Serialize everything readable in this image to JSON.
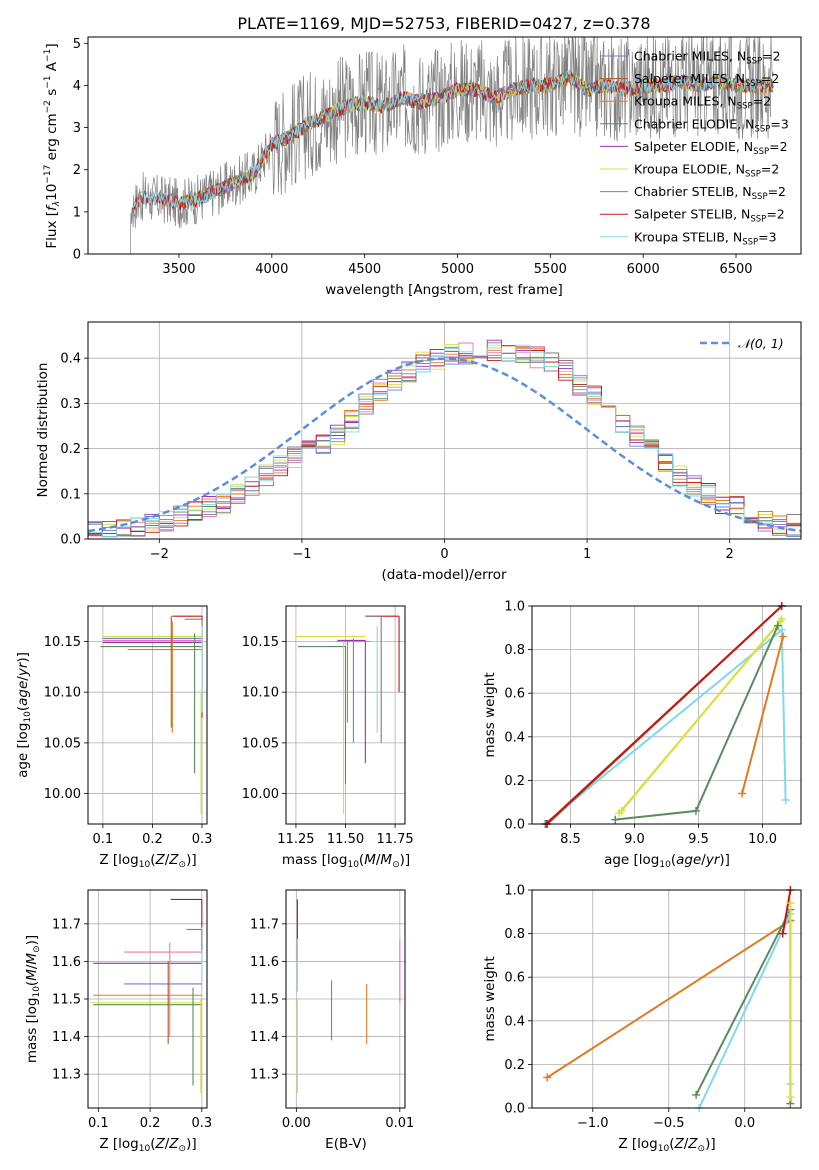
{
  "colors": {
    "chabrier_miles": "#6b7fd6",
    "salpeter_miles": "#a35a2a",
    "kroupa_miles": "#e07b20",
    "chabrier_elodie": "#5a8a5f",
    "salpeter_elodie": "#9b30b8",
    "kroupa_elodie": "#d8e040",
    "chabrier_stelib": "#7f7f7f",
    "salpeter_stelib": "#c01818",
    "kroupa_stelib": "#80d8e8",
    "pink": "#e878b8",
    "normal": "#5b8fd9"
  },
  "chart_data": [
    {
      "id": "spectrum",
      "type": "line",
      "title": "PLATE=1169, MJD=52753, FIBERID=0427, z=0.378",
      "xlabel": "wavelength [Angstrom, rest frame]",
      "ylabel": "Flux [fλ 10⁻¹⁷ erg cm⁻² s⁻¹ A⁻¹]",
      "xlim": [
        3010,
        6850
      ],
      "ylim": [
        0,
        5.15
      ],
      "xticks": [
        "3500",
        "4000",
        "4500",
        "5000",
        "5500",
        "6000",
        "6500"
      ],
      "yticks": [
        "0",
        "1",
        "2",
        "3",
        "4",
        "5"
      ],
      "grid": false,
      "legend_position": "top-right",
      "legend": [
        "Chabrier MILES, N_SSP=2",
        "Salpeter MILES, N_SSP=2",
        "Kroupa MILES, N_SSP=2",
        "Chabrier ELODIE, N_SSP=3",
        "Salpeter ELODIE, N_SSP=2",
        "Kroupa ELODIE, N_SSP=2",
        "Chabrier STELIB, N_SSP=2",
        "Salpeter STELIB, N_SSP=2",
        "Kroupa STELIB, N_SSP=3"
      ],
      "continuum": {
        "x": [
          3250,
          3300,
          3400,
          3500,
          3600,
          3700,
          3800,
          3900,
          4000,
          4100,
          4200,
          4300,
          4400,
          4500,
          4600,
          4700,
          4800,
          4900,
          5000,
          5100,
          5200,
          5300,
          5400,
          5500,
          5600,
          5700,
          5800,
          5900,
          6000,
          6100,
          6200,
          6300,
          6400,
          6500,
          6600,
          6700
        ],
        "y": [
          1.1,
          1.35,
          1.3,
          1.2,
          1.3,
          1.5,
          1.7,
          1.9,
          2.6,
          2.8,
          3.1,
          3.3,
          3.5,
          3.6,
          3.5,
          3.7,
          3.6,
          3.7,
          3.9,
          3.9,
          3.7,
          3.9,
          4.0,
          4.0,
          4.2,
          3.9,
          4.0,
          3.9,
          4.0,
          4.0,
          4.1,
          4.0,
          4.1,
          4.0,
          4.0,
          4.0
        ]
      }
    },
    {
      "id": "residuals",
      "type": "line",
      "xlabel": "(data-model)/error",
      "ylabel": "Normed distribution",
      "xlim": [
        -2.5,
        2.5
      ],
      "ylim": [
        0,
        0.48
      ],
      "xticks": [
        "−2",
        "−1",
        "0",
        "1",
        "2"
      ],
      "yticks": [
        "0.0",
        "0.1",
        "0.2",
        "0.3",
        "0.4"
      ],
      "grid": true,
      "legend_position": "top-right",
      "legend": [
        "𝒩(0, 1)"
      ],
      "normal": {
        "mean": 0,
        "sigma": 1
      },
      "hist_bins": {
        "start": -2.5,
        "width": 0.1
      },
      "hist_base": [
        0.02,
        0.02,
        0.02,
        0.03,
        0.03,
        0.04,
        0.05,
        0.06,
        0.07,
        0.08,
        0.1,
        0.12,
        0.14,
        0.16,
        0.18,
        0.2,
        0.21,
        0.23,
        0.26,
        0.3,
        0.33,
        0.35,
        0.37,
        0.39,
        0.4,
        0.41,
        0.41,
        0.42,
        0.42,
        0.41,
        0.41,
        0.4,
        0.39,
        0.37,
        0.34,
        0.32,
        0.29,
        0.26,
        0.23,
        0.2,
        0.17,
        0.14,
        0.12,
        0.1,
        0.08,
        0.07,
        0.05,
        0.04,
        0.03,
        0.03
      ]
    },
    {
      "id": "age-vs-z",
      "type": "scatter",
      "xlabel": "Z [log₁₀(Z/Z⊙)]",
      "ylabel": "age  [log₁₀(age/yr)]",
      "xlim": [
        0.07,
        0.31
      ],
      "ylim": [
        9.97,
        10.185
      ],
      "xticks": [
        "0.1",
        "0.2",
        "0.3"
      ],
      "yticks": [
        "10.00",
        "10.05",
        "10.10",
        "10.15"
      ],
      "grid": true
    },
    {
      "id": "age-vs-mass",
      "type": "scatter",
      "xlabel": "mass [log₁₀(M/M⊙)]",
      "xlim": [
        11.2,
        11.8
      ],
      "ylim": [
        9.97,
        10.185
      ],
      "xticks": [
        "11.25",
        "11.50",
        "11.75"
      ],
      "yticks": [
        "10.00",
        "10.05",
        "10.10",
        "10.15"
      ],
      "grid": true
    },
    {
      "id": "weight-vs-age",
      "type": "line",
      "xlabel": "age  [log₁₀(age/yr)]",
      "ylabel": "mass weight",
      "xlim": [
        8.2,
        10.3
      ],
      "ylim": [
        0,
        1
      ],
      "xticks": [
        "8.5",
        "9.0",
        "9.5",
        "10.0"
      ],
      "yticks": [
        "0.0",
        "0.2",
        "0.4",
        "0.6",
        "0.8",
        "1.0"
      ],
      "grid": true,
      "series": [
        {
          "color": "kroupa_stelib",
          "x": [
            8.3,
            10.15,
            10.18
          ],
          "y": [
            0.0,
            0.89,
            0.11
          ]
        },
        {
          "color": "salpeter_miles",
          "x": [
            8.32,
            10.15
          ],
          "y": [
            0.0,
            1.0
          ]
        },
        {
          "color": "kroupa_elodie",
          "x": [
            8.9,
            10.15
          ],
          "y": [
            0.06,
            0.94
          ]
        },
        {
          "color": "kroupa_elodie",
          "x": [
            8.88,
            10.14
          ],
          "y": [
            0.05,
            0.93
          ]
        },
        {
          "color": "chabrier_elodie",
          "x": [
            8.85,
            9.48,
            10.12
          ],
          "y": [
            0.02,
            0.06,
            0.91
          ]
        },
        {
          "color": "kroupa_miles",
          "x": [
            9.84,
            10.16
          ],
          "y": [
            0.14,
            0.86
          ]
        },
        {
          "color": "salpeter_stelib",
          "x": [
            8.31,
            10.15
          ],
          "y": [
            0.0,
            1.0
          ]
        }
      ]
    },
    {
      "id": "mass-vs-z",
      "type": "scatter",
      "xlabel": "Z [log₁₀(Z/Z⊙)]",
      "ylabel": "mass [log₁₀(M/M⊙)]",
      "xlim": [
        0.08,
        0.31
      ],
      "ylim": [
        11.21,
        11.79
      ],
      "xticks": [
        "0.1",
        "0.2",
        "0.3"
      ],
      "yticks": [
        "11.3",
        "11.4",
        "11.5",
        "11.6",
        "11.7"
      ],
      "grid": true
    },
    {
      "id": "mass-vs-ebv",
      "type": "scatter",
      "xlabel": "E(B-V)",
      "xlim": [
        -0.001,
        0.0105
      ],
      "ylim": [
        11.21,
        11.79
      ],
      "xticks": [
        "0.00",
        "0.01"
      ],
      "yticks": [
        "11.3",
        "11.4",
        "11.5",
        "11.6",
        "11.7"
      ],
      "grid": true
    },
    {
      "id": "weight-vs-z",
      "type": "line",
      "xlabel": "Z [log₁₀(Z/Z⊙)]",
      "ylabel": "mass weight",
      "xlim": [
        -1.4,
        0.37
      ],
      "ylim": [
        0,
        1
      ],
      "xticks": [
        "−1.0",
        "−0.5",
        "0.0"
      ],
      "yticks": [
        "0.0",
        "0.2",
        "0.4",
        "0.6",
        "0.8",
        "1.0"
      ],
      "grid": true,
      "series": [
        {
          "color": "kroupa_miles",
          "x": [
            -1.3,
            0.3,
            0.3
          ],
          "y": [
            0.14,
            0.86,
            0.86
          ]
        },
        {
          "color": "chabrier_elodie",
          "x": [
            -0.32,
            0.3,
            0.3
          ],
          "y": [
            0.06,
            0.91,
            0.02
          ]
        },
        {
          "color": "kroupa_stelib",
          "x": [
            -0.3,
            0.3,
            0.3
          ],
          "y": [
            0.0,
            0.89,
            0.11
          ]
        },
        {
          "color": "salpeter_stelib",
          "x": [
            0.25,
            0.3
          ],
          "y": [
            0.8,
            1.0
          ]
        },
        {
          "color": "kroupa_elodie",
          "x": [
            0.3,
            0.3
          ],
          "y": [
            0.05,
            0.94
          ]
        }
      ]
    }
  ]
}
